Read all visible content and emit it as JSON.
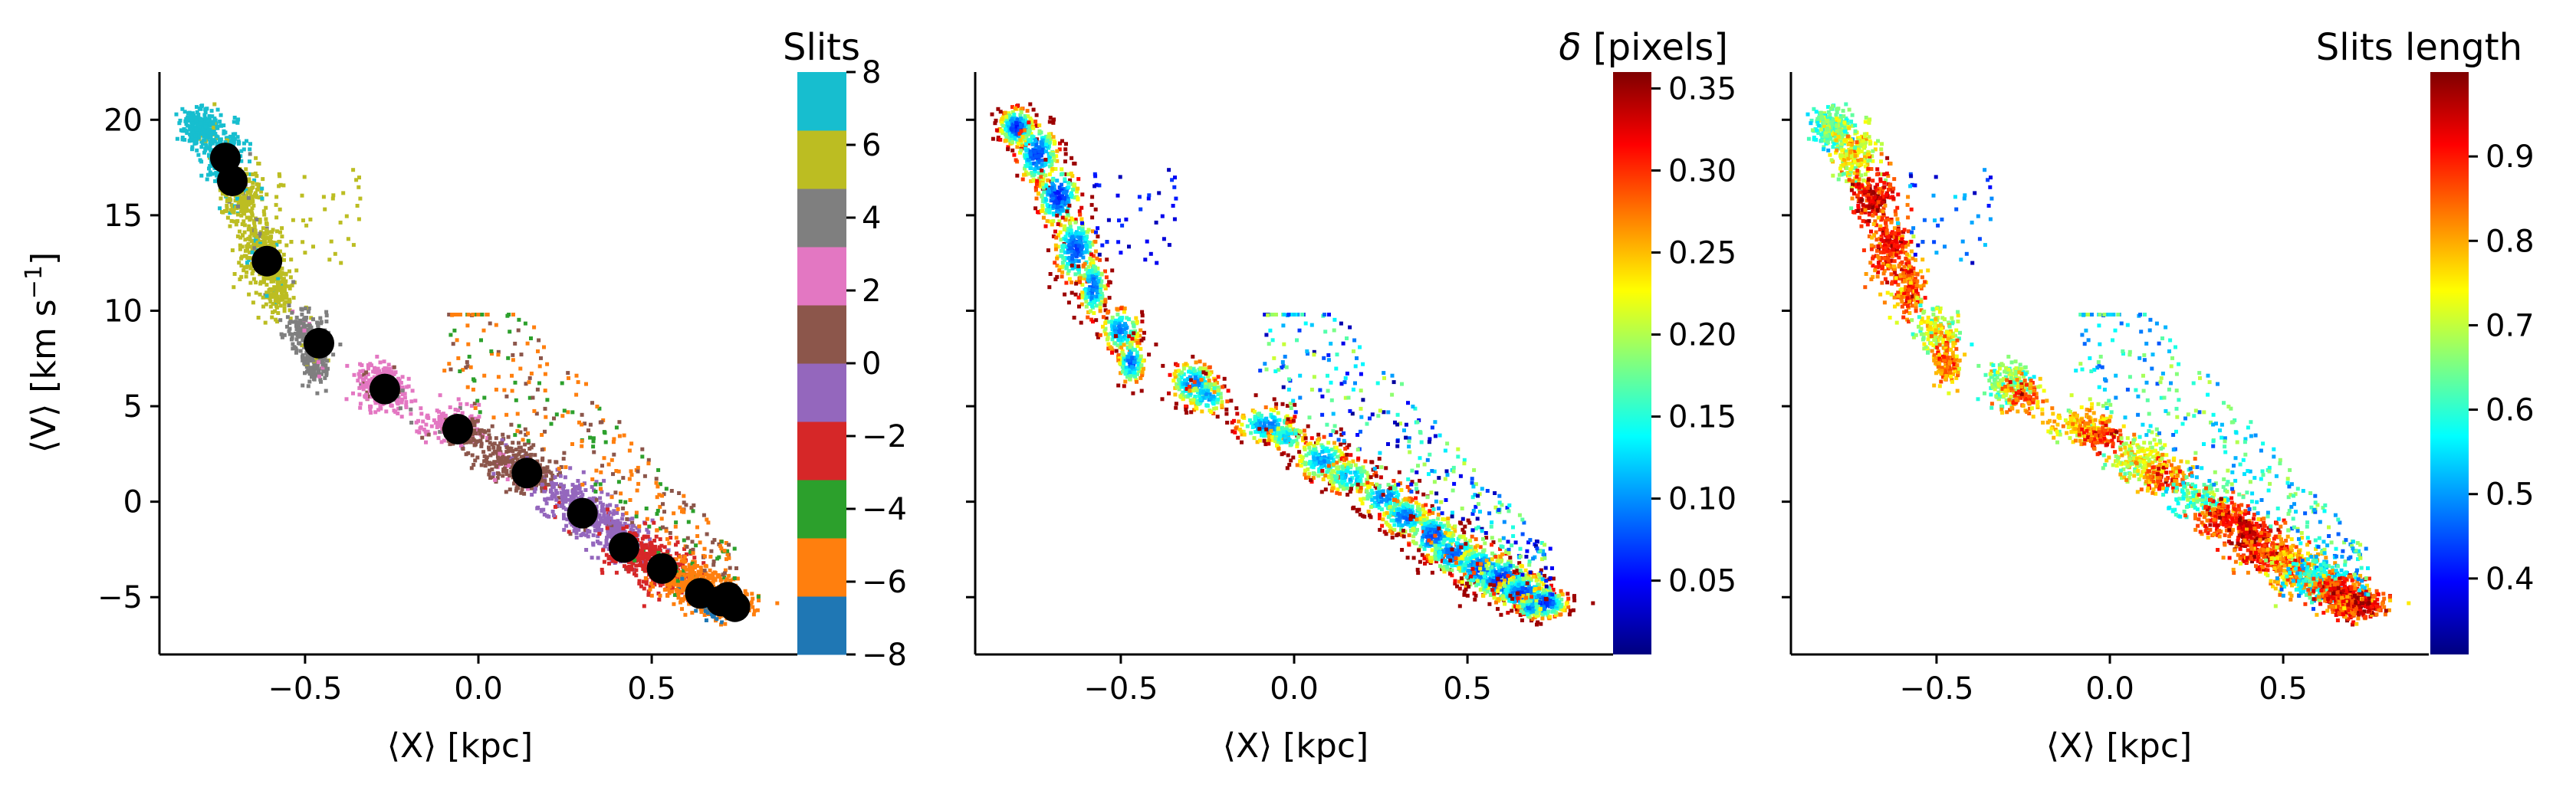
{
  "chart_data": [
    {
      "type": "scatter",
      "panel": "left",
      "xlabel": "⟨X⟩ [kpc]",
      "ylabel_main": "⟨V⟩ [km s",
      "ylabel_sup": "−1",
      "ylabel_end": "]",
      "xlim": [
        -0.92,
        0.92
      ],
      "ylim": [
        -8.0,
        22.5
      ],
      "xticks": [
        -0.5,
        0.0,
        0.5
      ],
      "xtick_labels": [
        "−0.5",
        "0.0",
        "0.5"
      ],
      "yticks": [
        -5,
        0,
        5,
        10,
        15,
        20
      ],
      "ytick_labels": [
        "−5",
        "0",
        "5",
        "10",
        "15",
        "20"
      ],
      "colorbar": {
        "title": "Slits",
        "type": "discrete",
        "range": [
          -8,
          8
        ],
        "ticks": [
          -8,
          -6,
          -4,
          -2,
          0,
          2,
          4,
          6,
          8
        ],
        "tick_labels": [
          "−8",
          "−6",
          "−4",
          "−2",
          "0",
          "2",
          "4",
          "6",
          "8"
        ],
        "colors": [
          "#1f77b4",
          "#ff7f0e",
          "#2ca02c",
          "#d62728",
          "#9467bd",
          "#8c564b",
          "#e377c2",
          "#7f7f7f",
          "#bcbd22",
          "#17becf"
        ]
      },
      "slit_means": [
        {
          "x": -0.73,
          "y": 18.0
        },
        {
          "x": -0.71,
          "y": 16.8
        },
        {
          "x": -0.61,
          "y": 12.6
        },
        {
          "x": -0.46,
          "y": 8.3
        },
        {
          "x": -0.27,
          "y": 5.9
        },
        {
          "x": -0.06,
          "y": 3.8
        },
        {
          "x": 0.14,
          "y": 1.5
        },
        {
          "x": 0.3,
          "y": -0.6
        },
        {
          "x": 0.42,
          "y": -2.4
        },
        {
          "x": 0.53,
          "y": -3.5
        },
        {
          "x": 0.64,
          "y": -4.8
        },
        {
          "x": 0.7,
          "y": -5.2
        },
        {
          "x": 0.72,
          "y": -5.0
        },
        {
          "x": 0.74,
          "y": -5.5
        }
      ]
    },
    {
      "type": "scatter",
      "panel": "middle",
      "xlabel": "⟨X⟩ [kpc]",
      "xlim": [
        -0.92,
        0.92
      ],
      "ylim": [
        -8.0,
        22.5
      ],
      "xticks": [
        -0.5,
        0.0,
        0.5
      ],
      "xtick_labels": [
        "−0.5",
        "0.0",
        "0.5"
      ],
      "colorbar": {
        "title_italic": "δ",
        "title_rest": " [pixels]",
        "type": "continuous",
        "colormap": "jet",
        "range": [
          0.005,
          0.36
        ],
        "ticks": [
          0.05,
          0.1,
          0.15,
          0.2,
          0.25,
          0.3,
          0.35
        ],
        "tick_labels": [
          "0.05",
          "0.10",
          "0.15",
          "0.20",
          "0.25",
          "0.30",
          "0.35"
        ]
      }
    },
    {
      "type": "scatter",
      "panel": "right",
      "xlabel": "⟨X⟩ [kpc]",
      "xlim": [
        -0.92,
        0.92
      ],
      "ylim": [
        -8.0,
        22.5
      ],
      "xticks": [
        -0.5,
        0.0,
        0.5
      ],
      "xtick_labels": [
        "−0.5",
        "0.0",
        "0.5"
      ],
      "colorbar": {
        "title": "Slits length",
        "type": "continuous",
        "colormap": "jet",
        "range": [
          0.31,
          1.0
        ],
        "ticks": [
          0.4,
          0.5,
          0.6,
          0.7,
          0.8,
          0.9
        ],
        "tick_labels": [
          "0.4",
          "0.5",
          "0.6",
          "0.7",
          "0.8",
          "0.9"
        ]
      }
    }
  ]
}
